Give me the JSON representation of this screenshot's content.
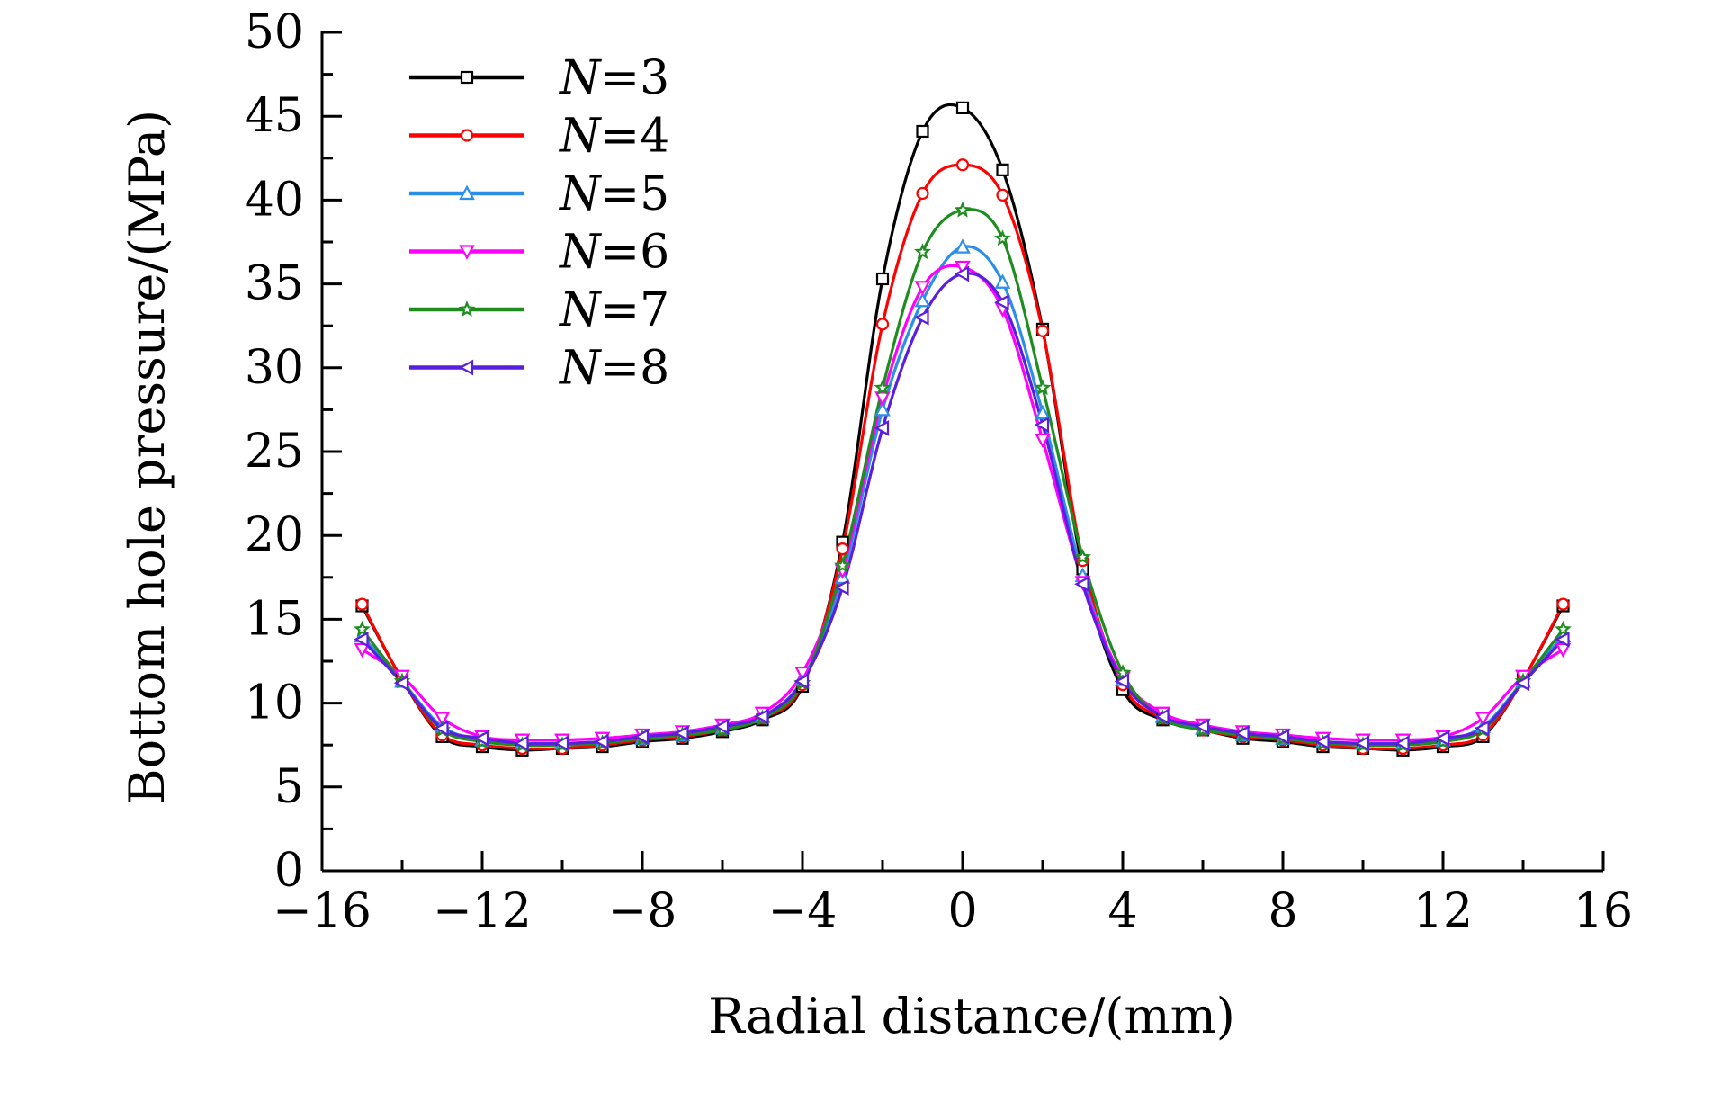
{
  "chart_data": {
    "type": "line",
    "title": "",
    "xlabel": "Radial distance/(mm)",
    "ylabel": "Bottom hole pressure/(MPa)",
    "xlim": [
      -16,
      16
    ],
    "ylim": [
      0,
      50
    ],
    "xticks": [
      -16,
      -12,
      -8,
      -4,
      0,
      4,
      8,
      12,
      16
    ],
    "xtick_labels": [
      "−16",
      "−12",
      "−8",
      "−4",
      "0",
      "4",
      "8",
      "12",
      "16"
    ],
    "yticks": [
      0,
      5,
      10,
      15,
      20,
      25,
      30,
      35,
      40,
      45,
      50
    ],
    "ytick_labels": [
      "0",
      "5",
      "10",
      "15",
      "20",
      "25",
      "30",
      "35",
      "40",
      "45",
      "50"
    ],
    "grid": false,
    "legend_position": "top-left",
    "x": [
      -15,
      -14,
      -13,
      -12,
      -11,
      -10,
      -9,
      -8,
      -7,
      -6,
      -5,
      -4,
      -3,
      -2,
      -1,
      0,
      1,
      2,
      3,
      4,
      5,
      6,
      7,
      8,
      9,
      10,
      11,
      12,
      13,
      14,
      15
    ],
    "series": [
      {
        "name": "N=3",
        "legend_var": "N",
        "legend_rest": "=3",
        "color": "#000000",
        "marker": "square",
        "values": [
          15.8,
          11.4,
          8.0,
          7.4,
          7.2,
          7.3,
          7.4,
          7.7,
          7.9,
          8.3,
          9.0,
          11.0,
          19.6,
          35.3,
          44.1,
          45.5,
          41.8,
          32.3,
          18.0,
          10.8,
          9.0,
          8.4,
          7.9,
          7.7,
          7.4,
          7.3,
          7.2,
          7.4,
          8.0,
          11.4,
          15.8
        ]
      },
      {
        "name": "N=4",
        "legend_var": "N",
        "legend_rest": "=4",
        "color": "#ff0000",
        "marker": "circle",
        "values": [
          15.9,
          11.4,
          8.1,
          7.5,
          7.3,
          7.3,
          7.5,
          7.8,
          8.0,
          8.4,
          9.1,
          11.1,
          19.2,
          32.6,
          40.4,
          42.1,
          40.3,
          32.2,
          18.5,
          11.1,
          9.1,
          8.4,
          8.0,
          7.8,
          7.5,
          7.3,
          7.3,
          7.5,
          8.1,
          11.4,
          15.9
        ]
      },
      {
        "name": "N=5",
        "legend_var": "N",
        "legend_rest": "=5",
        "color": "#2b8fe8",
        "marker": "triangle-up",
        "values": [
          14.0,
          11.3,
          8.6,
          7.8,
          7.6,
          7.6,
          7.7,
          7.9,
          8.1,
          8.5,
          9.2,
          11.4,
          17.5,
          27.5,
          34.0,
          37.2,
          35.1,
          27.3,
          17.6,
          11.4,
          9.2,
          8.5,
          8.1,
          7.9,
          7.7,
          7.6,
          7.6,
          7.8,
          8.6,
          11.3,
          14.0
        ]
      },
      {
        "name": "N=6",
        "legend_var": "N",
        "legend_rest": "=6",
        "color": "#ff00ff",
        "marker": "triangle-down",
        "values": [
          13.2,
          11.6,
          9.1,
          8.0,
          7.8,
          7.8,
          7.9,
          8.1,
          8.3,
          8.7,
          9.4,
          11.8,
          17.9,
          28.2,
          34.8,
          36.0,
          33.5,
          25.7,
          17.2,
          11.5,
          9.4,
          8.7,
          8.3,
          8.1,
          7.9,
          7.8,
          7.8,
          8.0,
          9.1,
          11.6,
          13.2
        ]
      },
      {
        "name": "N=7",
        "legend_var": "N",
        "legend_rest": "=7",
        "color": "#1e8c1e",
        "marker": "star",
        "values": [
          14.4,
          11.3,
          8.4,
          7.7,
          7.5,
          7.5,
          7.6,
          7.9,
          8.1,
          8.4,
          9.1,
          11.2,
          18.2,
          28.8,
          36.9,
          39.4,
          37.7,
          28.8,
          18.7,
          11.8,
          9.1,
          8.4,
          8.1,
          7.9,
          7.6,
          7.5,
          7.5,
          7.7,
          8.4,
          11.3,
          14.4
        ]
      },
      {
        "name": "N=8",
        "legend_var": "N",
        "legend_rest": "=8",
        "color": "#5a1ee0",
        "marker": "triangle-left",
        "values": [
          13.8,
          11.2,
          8.5,
          7.9,
          7.6,
          7.6,
          7.7,
          8.0,
          8.2,
          8.6,
          9.2,
          11.3,
          16.9,
          26.4,
          33.0,
          35.6,
          33.9,
          26.6,
          17.1,
          11.3,
          9.2,
          8.6,
          8.2,
          8.0,
          7.7,
          7.6,
          7.6,
          7.9,
          8.5,
          11.2,
          13.8
        ]
      }
    ]
  }
}
